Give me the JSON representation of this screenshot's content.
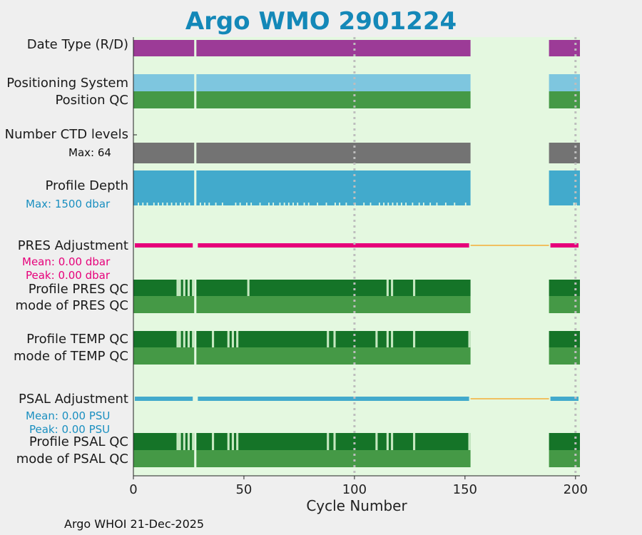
{
  "title": "Argo WMO 2901224",
  "footer": "Argo WHOI 21-Dec-2025",
  "colors": {
    "background_panel": "#e4f8e0",
    "date_type": "#9c3b97",
    "positioning": "#7ec6df",
    "qc_good": "#459946",
    "qc_dark": "#157428",
    "qc_light": "#c5e8c0",
    "ctd": "#737373",
    "depth": "#42aacc",
    "pres_adj": "#e6007a",
    "psal_adj": "#42aacc",
    "gap_line": "#f0c060",
    "title": "#1488b8"
  },
  "chart_data": {
    "type": "table",
    "title": "Argo WMO 2901224",
    "xlabel": "Cycle Number",
    "xlim": [
      0,
      202
    ],
    "xticks": [
      0,
      50,
      100,
      150,
      200
    ],
    "vertical_gridlines": [
      100,
      200
    ],
    "data_segments": [
      [
        0,
        27.5
      ],
      [
        28.5,
        152.5
      ],
      [
        188,
        202
      ]
    ],
    "rows": [
      {
        "key": "date_type",
        "label": "Date Type (R/D)"
      },
      {
        "key": "positioning",
        "label": "Positioning System"
      },
      {
        "key": "position_qc",
        "label": "Position QC"
      },
      {
        "key": "ctd_levels",
        "label": "Number CTD levels",
        "note": "Max: 64"
      },
      {
        "key": "profile_depth",
        "label": "Profile Depth",
        "note": "Max: 1500 dbar"
      },
      {
        "key": "pres_adjustment",
        "label": "PRES Adjustment",
        "mean": "Mean: 0.00 dbar",
        "peak": "Peak: 0.00 dbar"
      },
      {
        "key": "profile_pres_qc",
        "label": "Profile PRES QC",
        "light_cycles": [
          20,
          21,
          23,
          25,
          27,
          52,
          115,
          117,
          127
        ]
      },
      {
        "key": "mode_pres_qc",
        "label": "mode of PRES QC"
      },
      {
        "key": "profile_temp_qc",
        "label": "Profile TEMP QC",
        "light_cycles": [
          20,
          21,
          23,
          25,
          27,
          36,
          43,
          45,
          47,
          88,
          91,
          110,
          115,
          117,
          127,
          152
        ]
      },
      {
        "key": "mode_temp_qc",
        "label": "mode of TEMP QC"
      },
      {
        "key": "psal_adjustment",
        "label": "PSAL Adjustment",
        "mean": "Mean: 0.00 PSU",
        "peak": "Peak: 0.00 PSU"
      },
      {
        "key": "profile_psal_qc",
        "label": "Profile PSAL QC",
        "light_cycles": [
          20,
          21,
          23,
          25,
          27,
          36,
          43,
          45,
          47,
          88,
          91,
          110,
          115,
          117,
          127,
          152
        ]
      },
      {
        "key": "mode_psal_qc",
        "label": "mode of PSAL QC"
      }
    ]
  }
}
